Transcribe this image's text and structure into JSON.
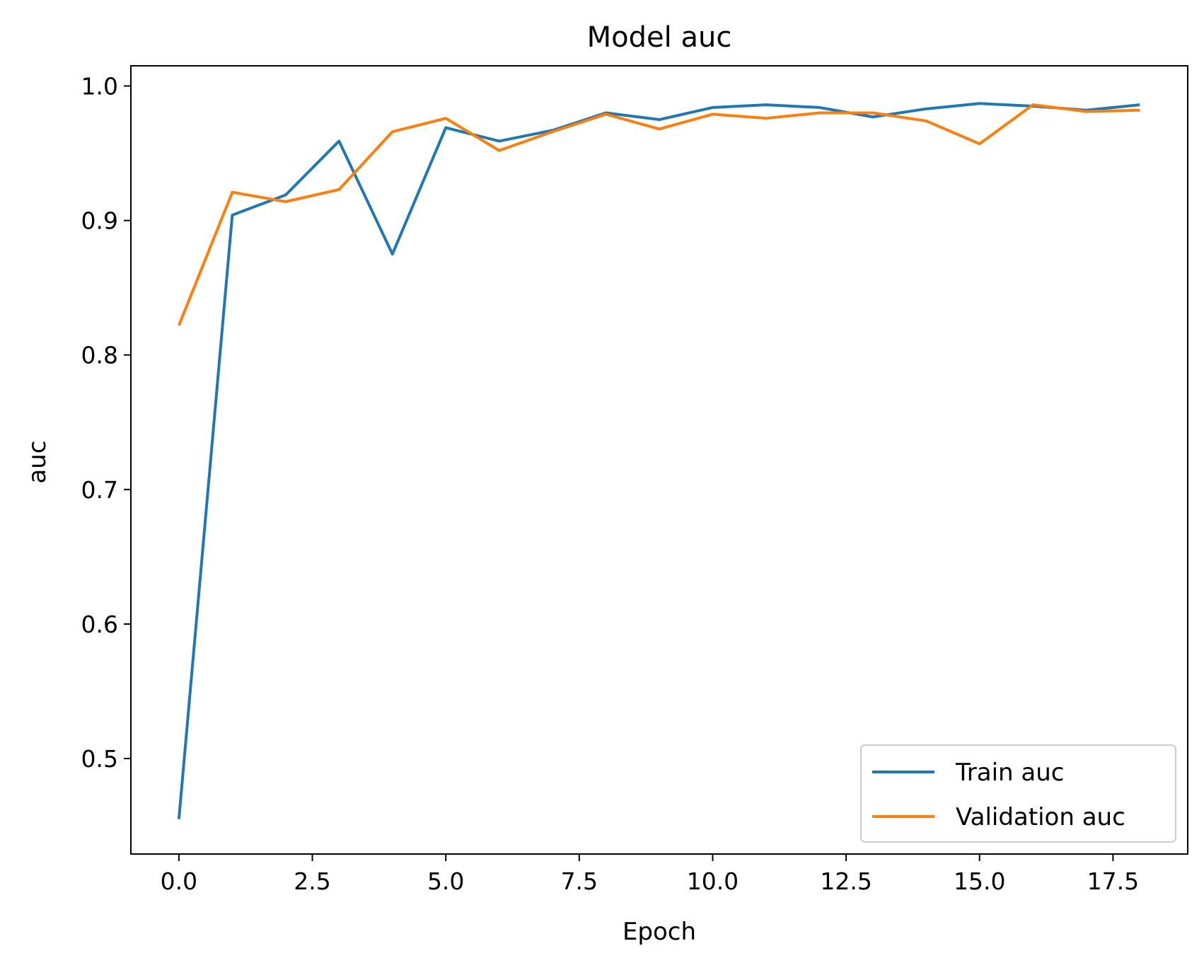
{
  "chart_data": {
    "type": "line",
    "title": "Model auc",
    "xlabel": "Epoch",
    "ylabel": "auc",
    "x": [
      0,
      1,
      2,
      3,
      4,
      5,
      6,
      7,
      8,
      9,
      10,
      11,
      12,
      13,
      14,
      15,
      16,
      17,
      18
    ],
    "series": [
      {
        "name": "Train auc",
        "color": "#1f77b4",
        "values": [
          0.455,
          0.904,
          0.919,
          0.959,
          0.875,
          0.969,
          0.959,
          0.967,
          0.98,
          0.975,
          0.984,
          0.986,
          0.984,
          0.977,
          0.983,
          0.987,
          0.985,
          0.982,
          0.986
        ]
      },
      {
        "name": "Validation auc",
        "color": "#ff7f0e",
        "values": [
          0.822,
          0.921,
          0.914,
          0.923,
          0.966,
          0.976,
          0.952,
          0.966,
          0.979,
          0.968,
          0.979,
          0.976,
          0.98,
          0.98,
          0.974,
          0.957,
          0.986,
          0.981,
          0.982
        ]
      }
    ],
    "xlim": [
      -0.9,
      18.9
    ],
    "ylim": [
      0.429,
      1.015
    ],
    "xticks": [
      0.0,
      2.5,
      5.0,
      7.5,
      10.0,
      12.5,
      15.0,
      17.5
    ],
    "xtick_labels": [
      "0.0",
      "2.5",
      "5.0",
      "7.5",
      "10.0",
      "12.5",
      "15.0",
      "17.5"
    ],
    "yticks": [
      0.5,
      0.6,
      0.7,
      0.8,
      0.9,
      1.0
    ],
    "ytick_labels": [
      "0.5",
      "0.6",
      "0.7",
      "0.8",
      "0.9",
      "1.0"
    ],
    "grid": false,
    "legend_position": "lower-right"
  }
}
